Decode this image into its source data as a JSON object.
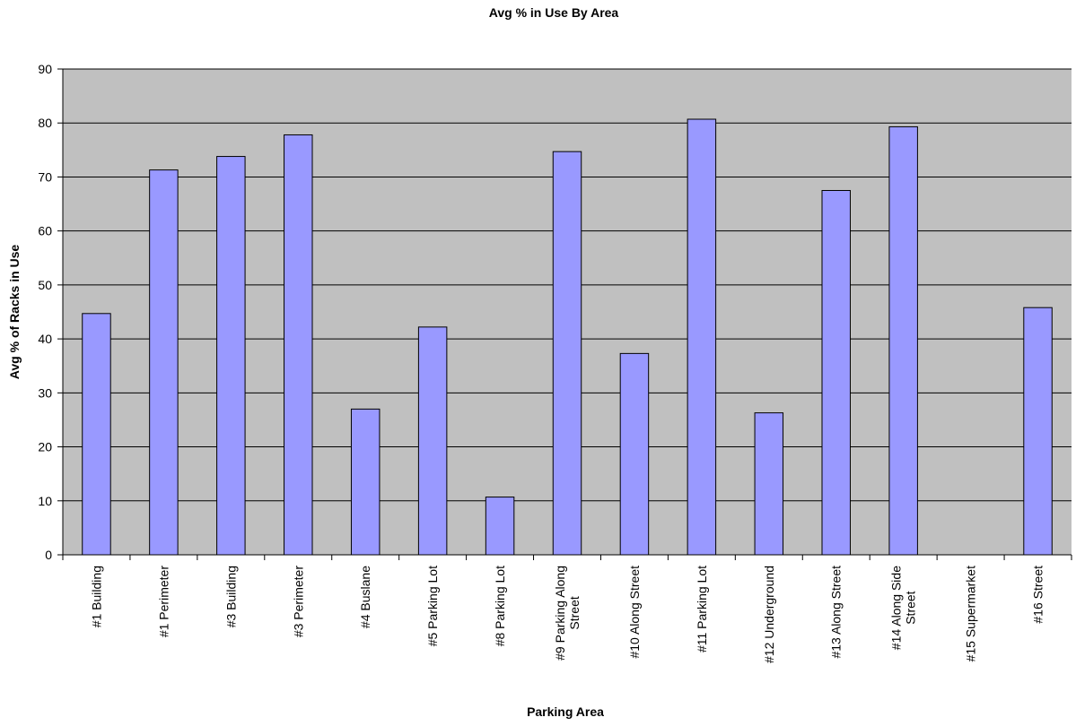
{
  "chart_data": {
    "type": "bar",
    "title": "Avg % in Use By Area",
    "xlabel": "Parking Area",
    "ylabel": "Avg % of Racks in Use",
    "ylim": [
      0,
      90
    ],
    "yticks": [
      0,
      10,
      20,
      30,
      40,
      50,
      60,
      70,
      80,
      90
    ],
    "grid": true,
    "legend": "none",
    "colors": {
      "bar": "#9999ff",
      "plot_bg": "#c0c0c0",
      "bar_stroke": "#000000",
      "grid": "#000000"
    },
    "categories": [
      [
        "#1 Building"
      ],
      [
        "#1 Perimeter"
      ],
      [
        "#3 Building"
      ],
      [
        "#3 Perimeter"
      ],
      [
        "#4 Buslane"
      ],
      [
        "#5 Parking Lot"
      ],
      [
        "#8 Parking Lot"
      ],
      [
        "#9 Parking Along",
        "Street"
      ],
      [
        "#10 Along Street"
      ],
      [
        "#11 Parking Lot"
      ],
      [
        "#12 Underground"
      ],
      [
        "#13 Along Street"
      ],
      [
        "#14 Along Side",
        "Street"
      ],
      [
        "#15 Supermarket"
      ],
      [
        "#16 Street"
      ]
    ],
    "values": [
      44.7,
      71.3,
      73.8,
      77.8,
      27.0,
      42.2,
      10.7,
      74.7,
      37.3,
      80.7,
      26.3,
      67.5,
      79.3,
      0,
      45.8
    ]
  }
}
